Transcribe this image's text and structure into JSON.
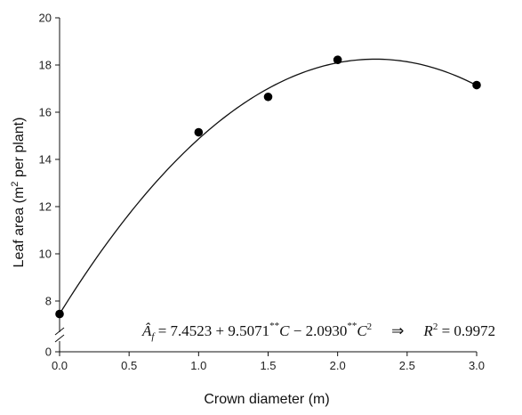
{
  "chart_data": {
    "type": "scatter",
    "xlabel": "Crown diameter (m)",
    "ylabel_main": "Leaf area (m",
    "ylabel_sup": "2",
    "ylabel_tail": " per plant)",
    "xlim": [
      0,
      3
    ],
    "ylim": [
      6.5,
      20
    ],
    "y_axis_break": true,
    "x_ticks": [
      "0.0",
      "0.5",
      "1.0",
      "1.5",
      "2.0",
      "2.5",
      "3.0"
    ],
    "y_ticks": [
      "0",
      "8",
      "10",
      "12",
      "14",
      "16",
      "18",
      "20"
    ],
    "grid": false,
    "points": [
      {
        "x": 0.0,
        "y": 7.45
      },
      {
        "x": 1.0,
        "y": 15.15
      },
      {
        "x": 1.5,
        "y": 16.65
      },
      {
        "x": 2.0,
        "y": 18.22
      },
      {
        "x": 3.0,
        "y": 17.15
      }
    ],
    "fit": {
      "type": "quadratic",
      "intercept": 7.4523,
      "linear": 9.5071,
      "quadratic": -2.093,
      "x_range": [
        0,
        3
      ]
    },
    "annotation": {
      "lhs": "Â",
      "lhs_sub": "f",
      "eq1": " = 7.4523 + 9.5071",
      "sig": "**",
      "var_c": "C",
      "eq2": " − 2.0930",
      "sq": "2",
      "arrow": "⇒",
      "r": "R",
      "eq3": " = 0.9972"
    }
  }
}
